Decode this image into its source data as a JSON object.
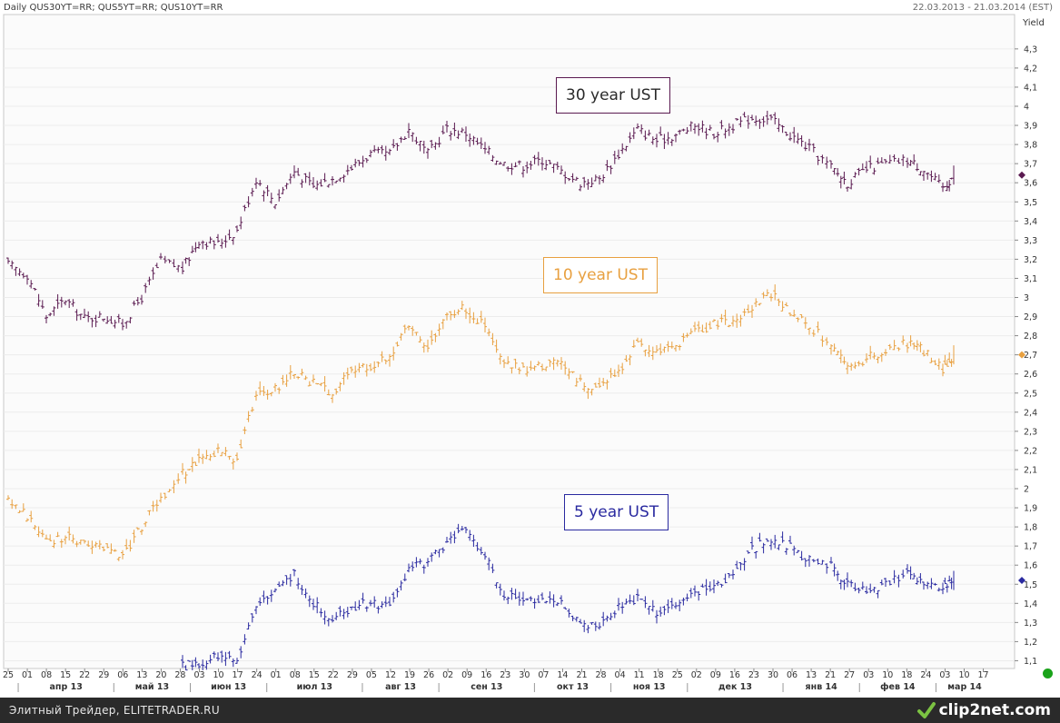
{
  "header": {
    "title": "Daily QUS30YT=RR; QUS5YT=RR; QUS10YT=RR",
    "date_range": "22.03.2013 - 21.03.2014 (EST)",
    "y_axis_title": "Yield"
  },
  "footer": {
    "text": "Элитный Трейдер, ELITETRADER.RU",
    "brand": "clip2net.com"
  },
  "colors": {
    "series_30y": "#5a1a50",
    "series_10y": "#e8a040",
    "series_5y": "#2a2aa0",
    "grid": "#ececec",
    "status": "#1aa31a"
  },
  "icons": [
    "clip2net-logo-icon",
    "status-dot-icon"
  ],
  "chart_data": {
    "type": "line",
    "chart_style": "ohlc-bars",
    "ylim": [
      1.05,
      4.4
    ],
    "y_tick_labels": [
      "1,1",
      "1,2",
      "1,3",
      "1,4",
      "1,5",
      "1,6",
      "1,7",
      "1,8",
      "1,9",
      "2",
      "2,1",
      "2,2",
      "2,3",
      "2,4",
      "2,5",
      "2,6",
      "2,7",
      "2,8",
      "2,9",
      "3",
      "3,1",
      "3,2",
      "3,3",
      "3,4",
      "3,5",
      "3,6",
      "3,7",
      "3,8",
      "3,9",
      "4",
      "4,1",
      "4,2",
      "4,3"
    ],
    "x_day_labels": [
      "25",
      "01",
      "08",
      "15",
      "22",
      "29",
      "06",
      "13",
      "20",
      "28",
      "03",
      "10",
      "17",
      "24",
      "01",
      "08",
      "15",
      "22",
      "29",
      "05",
      "12",
      "19",
      "26",
      "02",
      "09",
      "16",
      "23",
      "30",
      "07",
      "14",
      "21",
      "28",
      "04",
      "11",
      "18",
      "25",
      "02",
      "09",
      "16",
      "23",
      "30",
      "06",
      "13",
      "21",
      "27",
      "03",
      "10",
      "18",
      "24",
      "03",
      "10",
      "17"
    ],
    "x_month_labels": [
      "апр 13",
      "май 13",
      "июн 13",
      "июл 13",
      "авг 13",
      "сен 13",
      "окт 13",
      "ноя 13",
      "дек 13",
      "янв 14",
      "фев 14",
      "мар 14"
    ],
    "series": [
      {
        "name": "30 year UST",
        "last_value": 3.64,
        "values": [
          {
            "x": "2013-03-25",
            "y": 3.17
          },
          {
            "x": "2013-04-01",
            "y": 3.12
          },
          {
            "x": "2013-04-08",
            "y": 2.9
          },
          {
            "x": "2013-04-15",
            "y": 2.99
          },
          {
            "x": "2013-04-22",
            "y": 2.89
          },
          {
            "x": "2013-04-29",
            "y": 2.9
          },
          {
            "x": "2013-05-06",
            "y": 2.86
          },
          {
            "x": "2013-05-13",
            "y": 3.0
          },
          {
            "x": "2013-05-20",
            "y": 3.19
          },
          {
            "x": "2013-05-28",
            "y": 3.15
          },
          {
            "x": "2013-06-03",
            "y": 3.3
          },
          {
            "x": "2013-06-10",
            "y": 3.28
          },
          {
            "x": "2013-06-17",
            "y": 3.35
          },
          {
            "x": "2013-06-24",
            "y": 3.62
          },
          {
            "x": "2013-07-01",
            "y": 3.5
          },
          {
            "x": "2013-07-08",
            "y": 3.66
          },
          {
            "x": "2013-07-15",
            "y": 3.58
          },
          {
            "x": "2013-07-22",
            "y": 3.62
          },
          {
            "x": "2013-07-29",
            "y": 3.68
          },
          {
            "x": "2013-08-05",
            "y": 3.75
          },
          {
            "x": "2013-08-12",
            "y": 3.75
          },
          {
            "x": "2013-08-19",
            "y": 3.88
          },
          {
            "x": "2013-08-26",
            "y": 3.75
          },
          {
            "x": "2013-09-02",
            "y": 3.88
          },
          {
            "x": "2013-09-09",
            "y": 3.86
          },
          {
            "x": "2013-09-16",
            "y": 3.77
          },
          {
            "x": "2013-09-23",
            "y": 3.7
          },
          {
            "x": "2013-09-30",
            "y": 3.69
          },
          {
            "x": "2013-10-07",
            "y": 3.72
          },
          {
            "x": "2013-10-14",
            "y": 3.66
          },
          {
            "x": "2013-10-21",
            "y": 3.6
          },
          {
            "x": "2013-10-28",
            "y": 3.62
          },
          {
            "x": "2013-11-04",
            "y": 3.75
          },
          {
            "x": "2013-11-11",
            "y": 3.88
          },
          {
            "x": "2013-11-18",
            "y": 3.82
          },
          {
            "x": "2013-11-25",
            "y": 3.85
          },
          {
            "x": "2013-12-02",
            "y": 3.9
          },
          {
            "x": "2013-12-09",
            "y": 3.86
          },
          {
            "x": "2013-12-16",
            "y": 3.9
          },
          {
            "x": "2013-12-23",
            "y": 3.94
          },
          {
            "x": "2013-12-30",
            "y": 3.93
          },
          {
            "x": "2014-01-06",
            "y": 3.85
          },
          {
            "x": "2014-01-13",
            "y": 3.78
          },
          {
            "x": "2014-01-21",
            "y": 3.68
          },
          {
            "x": "2014-01-27",
            "y": 3.6
          },
          {
            "x": "2014-02-03",
            "y": 3.67
          },
          {
            "x": "2014-02-10",
            "y": 3.7
          },
          {
            "x": "2014-02-18",
            "y": 3.72
          },
          {
            "x": "2014-02-24",
            "y": 3.67
          },
          {
            "x": "2014-03-03",
            "y": 3.57
          },
          {
            "x": "2014-03-07",
            "y": 3.64
          }
        ]
      },
      {
        "name": "10 year UST",
        "last_value": 2.7,
        "values": [
          {
            "x": "2013-03-25",
            "y": 1.93
          },
          {
            "x": "2013-04-01",
            "y": 1.86
          },
          {
            "x": "2013-04-08",
            "y": 1.72
          },
          {
            "x": "2013-04-15",
            "y": 1.75
          },
          {
            "x": "2013-04-22",
            "y": 1.7
          },
          {
            "x": "2013-04-29",
            "y": 1.7
          },
          {
            "x": "2013-05-06",
            "y": 1.65
          },
          {
            "x": "2013-05-13",
            "y": 1.8
          },
          {
            "x": "2013-05-20",
            "y": 1.95
          },
          {
            "x": "2013-05-28",
            "y": 2.08
          },
          {
            "x": "2013-06-03",
            "y": 2.15
          },
          {
            "x": "2013-06-10",
            "y": 2.2
          },
          {
            "x": "2013-06-17",
            "y": 2.15
          },
          {
            "x": "2013-06-24",
            "y": 2.5
          },
          {
            "x": "2013-07-01",
            "y": 2.52
          },
          {
            "x": "2013-07-08",
            "y": 2.62
          },
          {
            "x": "2013-07-15",
            "y": 2.55
          },
          {
            "x": "2013-07-22",
            "y": 2.5
          },
          {
            "x": "2013-07-29",
            "y": 2.62
          },
          {
            "x": "2013-08-05",
            "y": 2.64
          },
          {
            "x": "2013-08-12",
            "y": 2.7
          },
          {
            "x": "2013-08-19",
            "y": 2.85
          },
          {
            "x": "2013-08-26",
            "y": 2.75
          },
          {
            "x": "2013-09-02",
            "y": 2.92
          },
          {
            "x": "2013-09-09",
            "y": 2.94
          },
          {
            "x": "2013-09-16",
            "y": 2.85
          },
          {
            "x": "2013-09-23",
            "y": 2.65
          },
          {
            "x": "2013-09-30",
            "y": 2.62
          },
          {
            "x": "2013-10-07",
            "y": 2.64
          },
          {
            "x": "2013-10-14",
            "y": 2.66
          },
          {
            "x": "2013-10-21",
            "y": 2.55
          },
          {
            "x": "2013-10-28",
            "y": 2.52
          },
          {
            "x": "2013-11-04",
            "y": 2.62
          },
          {
            "x": "2013-11-11",
            "y": 2.75
          },
          {
            "x": "2013-11-18",
            "y": 2.72
          },
          {
            "x": "2013-11-25",
            "y": 2.74
          },
          {
            "x": "2013-12-02",
            "y": 2.82
          },
          {
            "x": "2013-12-09",
            "y": 2.86
          },
          {
            "x": "2013-12-16",
            "y": 2.88
          },
          {
            "x": "2013-12-23",
            "y": 2.95
          },
          {
            "x": "2013-12-30",
            "y": 3.02
          },
          {
            "x": "2014-01-06",
            "y": 2.92
          },
          {
            "x": "2014-01-13",
            "y": 2.85
          },
          {
            "x": "2014-01-21",
            "y": 2.75
          },
          {
            "x": "2014-01-27",
            "y": 2.65
          },
          {
            "x": "2014-02-03",
            "y": 2.68
          },
          {
            "x": "2014-02-10",
            "y": 2.72
          },
          {
            "x": "2014-02-18",
            "y": 2.76
          },
          {
            "x": "2014-02-24",
            "y": 2.72
          },
          {
            "x": "2014-03-03",
            "y": 2.63
          },
          {
            "x": "2014-03-07",
            "y": 2.7
          }
        ]
      },
      {
        "name": "5 year UST",
        "last_value": 1.52,
        "values": [
          {
            "x": "2013-05-28",
            "y": 1.07
          },
          {
            "x": "2013-06-03",
            "y": 1.09
          },
          {
            "x": "2013-06-10",
            "y": 1.12
          },
          {
            "x": "2013-06-17",
            "y": 1.1
          },
          {
            "x": "2013-06-24",
            "y": 1.4
          },
          {
            "x": "2013-07-01",
            "y": 1.45
          },
          {
            "x": "2013-07-08",
            "y": 1.55
          },
          {
            "x": "2013-07-15",
            "y": 1.4
          },
          {
            "x": "2013-07-22",
            "y": 1.32
          },
          {
            "x": "2013-07-29",
            "y": 1.38
          },
          {
            "x": "2013-08-05",
            "y": 1.4
          },
          {
            "x": "2013-08-12",
            "y": 1.38
          },
          {
            "x": "2013-08-19",
            "y": 1.58
          },
          {
            "x": "2013-08-26",
            "y": 1.62
          },
          {
            "x": "2013-09-02",
            "y": 1.72
          },
          {
            "x": "2013-09-09",
            "y": 1.78
          },
          {
            "x": "2013-09-16",
            "y": 1.65
          },
          {
            "x": "2013-09-23",
            "y": 1.45
          },
          {
            "x": "2013-09-30",
            "y": 1.4
          },
          {
            "x": "2013-10-07",
            "y": 1.42
          },
          {
            "x": "2013-10-14",
            "y": 1.4
          },
          {
            "x": "2013-10-21",
            "y": 1.3
          },
          {
            "x": "2013-10-28",
            "y": 1.28
          },
          {
            "x": "2013-11-04",
            "y": 1.38
          },
          {
            "x": "2013-11-11",
            "y": 1.42
          },
          {
            "x": "2013-11-18",
            "y": 1.35
          },
          {
            "x": "2013-11-25",
            "y": 1.38
          },
          {
            "x": "2013-12-02",
            "y": 1.45
          },
          {
            "x": "2013-12-09",
            "y": 1.5
          },
          {
            "x": "2013-12-16",
            "y": 1.55
          },
          {
            "x": "2013-12-23",
            "y": 1.68
          },
          {
            "x": "2013-12-30",
            "y": 1.74
          },
          {
            "x": "2014-01-06",
            "y": 1.7
          },
          {
            "x": "2014-01-13",
            "y": 1.62
          },
          {
            "x": "2014-01-21",
            "y": 1.6
          },
          {
            "x": "2014-01-27",
            "y": 1.5
          },
          {
            "x": "2014-02-03",
            "y": 1.47
          },
          {
            "x": "2014-02-10",
            "y": 1.5
          },
          {
            "x": "2014-02-18",
            "y": 1.55
          },
          {
            "x": "2014-02-24",
            "y": 1.52
          },
          {
            "x": "2014-03-03",
            "y": 1.48
          },
          {
            "x": "2014-03-07",
            "y": 1.52
          }
        ]
      }
    ]
  }
}
